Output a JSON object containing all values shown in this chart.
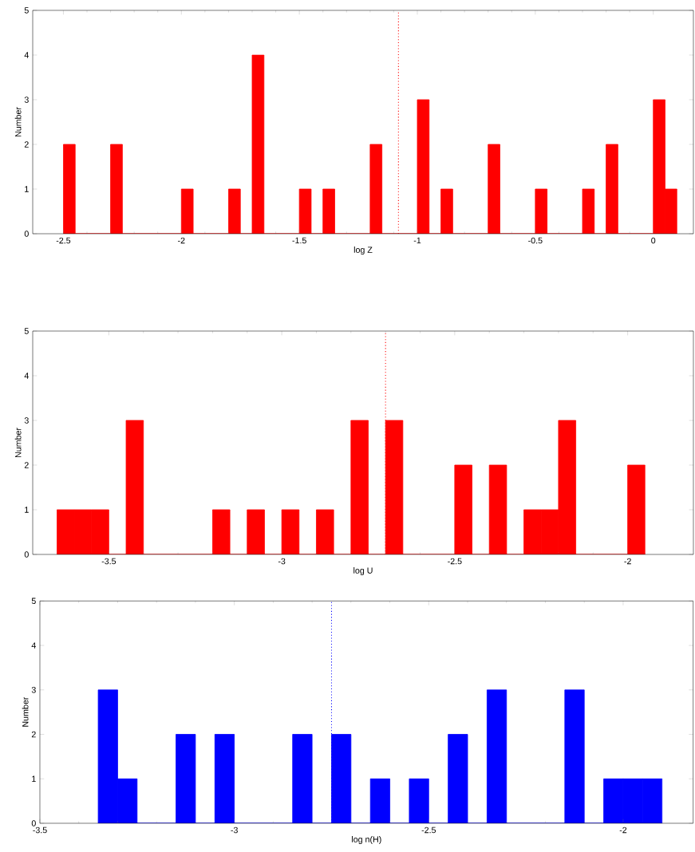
{
  "chart_data": [
    {
      "type": "histogram",
      "xlabel": "log Z",
      "ylabel": "Number",
      "color": "#ff0000",
      "bins": [
        -2.5,
        -2.45,
        -2.3,
        -2.25,
        -2.0,
        -1.95,
        -1.8,
        -1.75,
        -1.7,
        -1.65,
        -1.5,
        -1.45,
        -1.4,
        -1.35,
        -1.2,
        -1.15,
        -1.0,
        -0.95,
        -0.9,
        -0.85,
        -0.7,
        -0.65,
        -0.5,
        -0.45,
        -0.3,
        -0.25,
        -0.2,
        -0.15,
        0.0,
        0.05,
        0.1
      ],
      "values": [
        2,
        0,
        2,
        0,
        1,
        0,
        1,
        0,
        4,
        0,
        1,
        0,
        1,
        0,
        2,
        0,
        3,
        0,
        1,
        0,
        2,
        0,
        1,
        0,
        1,
        0,
        2,
        0,
        3,
        1
      ],
      "xlim": [
        -2.63,
        0.17
      ],
      "xticks": [
        -2.5,
        -2,
        -1.5,
        -1,
        -0.5,
        0
      ],
      "ylim": [
        0,
        5
      ],
      "yticks": [
        0,
        1,
        2,
        3,
        4,
        5
      ],
      "ref_lines": [
        {
          "axis": "x",
          "value": -1.08,
          "color": "#ff0000",
          "line_style": "dotted"
        }
      ]
    },
    {
      "type": "histogram",
      "xlabel": "log U",
      "ylabel": "Number",
      "color": "#ff0000",
      "bins": [
        -3.65,
        -3.6,
        -3.55,
        -3.5,
        -3.45,
        -3.4,
        -3.2,
        -3.15,
        -3.1,
        -3.05,
        -3.0,
        -2.95,
        -2.9,
        -2.85,
        -2.8,
        -2.75,
        -2.7,
        -2.65,
        -2.5,
        -2.45,
        -2.4,
        -2.35,
        -2.3,
        -2.25,
        -2.2,
        -2.15,
        -2.0,
        -1.95
      ],
      "values": [
        1,
        1,
        1,
        0,
        3,
        0,
        1,
        0,
        1,
        0,
        1,
        0,
        1,
        0,
        3,
        0,
        3,
        0,
        2,
        0,
        2,
        0,
        1,
        1,
        3,
        0,
        2
      ],
      "xlim": [
        -3.72,
        -1.81
      ],
      "xticks": [
        -3.5,
        -3,
        -2.5,
        -2
      ],
      "ylim": [
        0,
        5
      ],
      "yticks": [
        0,
        1,
        2,
        3,
        4,
        5
      ],
      "ref_lines": [
        {
          "axis": "x",
          "value": -2.7,
          "color": "#ff0000",
          "line_style": "dotted"
        }
      ]
    },
    {
      "type": "histogram",
      "xlabel": "log n(H)",
      "ylabel": "Number",
      "color": "#0000ff",
      "bins": [
        -3.35,
        -3.3,
        -3.25,
        -3.15,
        -3.1,
        -3.05,
        -3.0,
        -2.85,
        -2.8,
        -2.75,
        -2.7,
        -2.65,
        -2.6,
        -2.55,
        -2.5,
        -2.45,
        -2.4,
        -2.35,
        -2.3,
        -2.15,
        -2.1,
        -2.05,
        -2.0,
        -1.95,
        -1.9
      ],
      "values": [
        3,
        1,
        0,
        2,
        0,
        2,
        0,
        2,
        0,
        2,
        0,
        1,
        0,
        1,
        0,
        2,
        0,
        3,
        0,
        3,
        0,
        1,
        1,
        1
      ],
      "xlim": [
        -3.5,
        -1.82
      ],
      "xticks": [
        -3.5,
        -3,
        -2.5,
        -2
      ],
      "ylim": [
        0,
        5
      ],
      "yticks": [
        0,
        1,
        2,
        3,
        4,
        5
      ],
      "ref_lines": [
        {
          "axis": "x",
          "value": -2.75,
          "color": "#0000ff",
          "line_style": "dotted"
        }
      ]
    }
  ]
}
